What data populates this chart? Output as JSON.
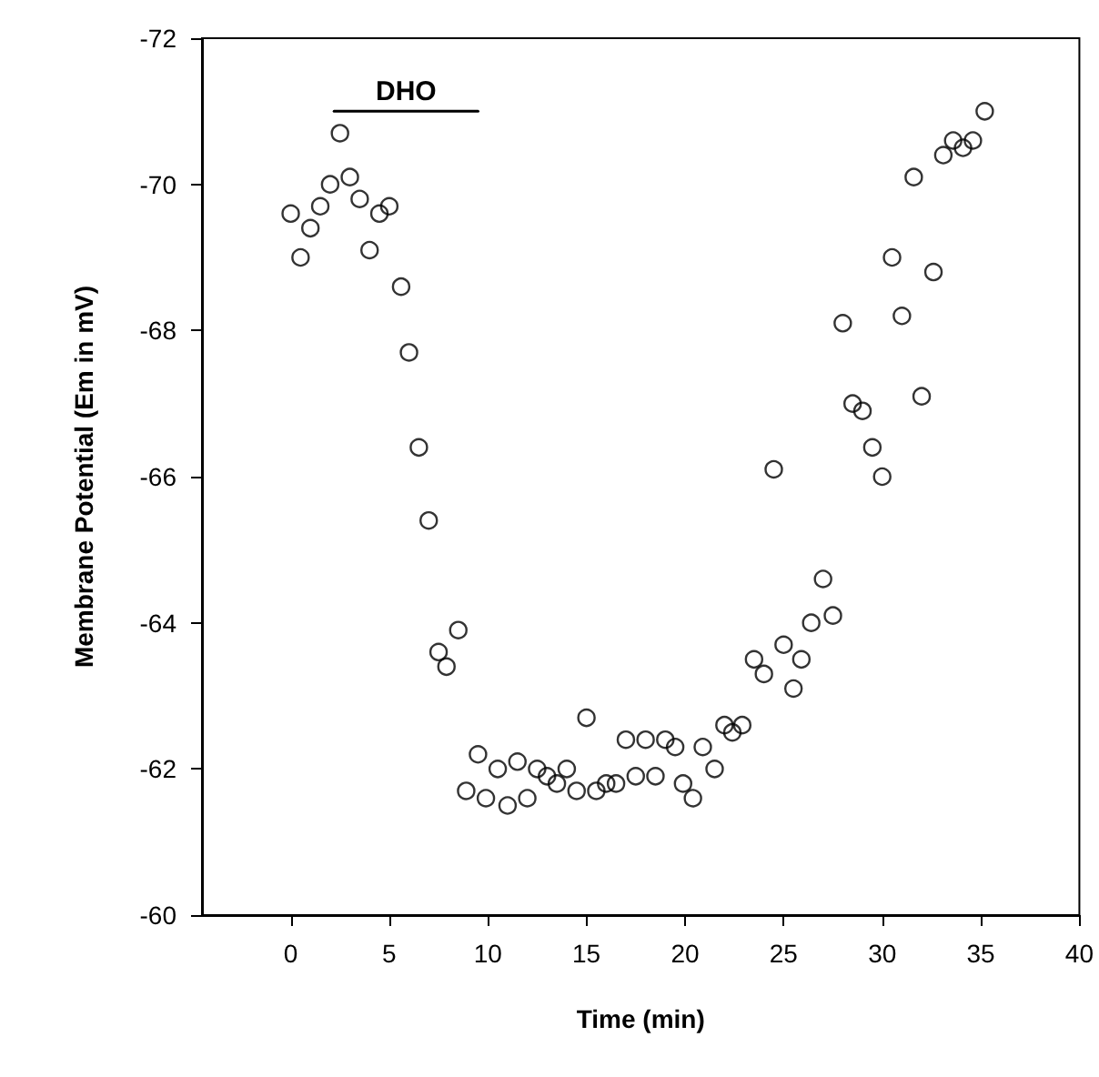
{
  "chart_data": {
    "type": "scatter",
    "xlabel": "Time (min)",
    "ylabel": "Membrane Potential (Em in mV)",
    "xlim": [
      -4.5,
      40
    ],
    "xticks": [
      0,
      5,
      10,
      15,
      20,
      25,
      30,
      35,
      40
    ],
    "ylim": [
      -60,
      -72
    ],
    "yticks": [
      -60,
      -62,
      -64,
      -66,
      -68,
      -70,
      -72
    ],
    "grid": false,
    "legend": false,
    "marker": "circle",
    "series": [
      {
        "color": "#000000",
        "x": [
          0.0,
          0.5,
          1.0,
          1.5,
          2.0,
          2.5,
          3.0,
          3.5,
          4.0,
          4.5,
          5.0,
          5.6,
          6.0,
          6.5,
          7.0,
          7.5,
          7.9,
          8.5,
          8.9,
          9.5,
          9.9,
          10.5,
          11.0,
          11.5,
          12.0,
          12.5,
          13.0,
          13.5,
          14.0,
          14.5,
          15.0,
          15.5,
          16.0,
          16.5,
          17.0,
          17.5,
          18.0,
          18.5,
          19.0,
          19.5,
          19.9,
          20.4,
          20.9,
          21.5,
          22.0,
          22.4,
          22.9,
          23.5,
          24.0,
          24.5,
          25.0,
          25.5,
          25.9,
          26.4,
          27.0,
          27.5,
          28.0,
          28.5,
          29.0,
          29.5,
          30.0,
          30.5,
          31.0,
          31.6,
          32.0,
          32.6,
          33.1,
          33.6,
          34.1,
          34.6,
          35.2
        ],
        "values": [
          -69.6,
          -69.0,
          -69.4,
          -69.7,
          -70.0,
          -70.7,
          -70.1,
          -69.8,
          -69.1,
          -69.6,
          -69.7,
          -68.6,
          -67.7,
          -66.4,
          -65.4,
          -63.6,
          -63.4,
          -63.9,
          -61.7,
          -62.2,
          -61.6,
          -62.0,
          -61.5,
          -62.1,
          -61.6,
          -62.0,
          -61.9,
          -61.8,
          -62.0,
          -61.7,
          -62.7,
          -61.7,
          -61.8,
          -61.8,
          -62.4,
          -61.9,
          -62.4,
          -61.9,
          -62.4,
          -62.3,
          -61.8,
          -61.6,
          -62.3,
          -62.0,
          -62.6,
          -62.5,
          -62.6,
          -63.5,
          -63.3,
          -66.1,
          -63.7,
          -63.1,
          -63.5,
          -64.0,
          -64.6,
          -64.1,
          -68.1,
          -67.0,
          -66.9,
          -66.4,
          -66.0,
          -69.0,
          -68.2,
          -70.1,
          -67.1,
          -68.8,
          -70.4,
          -70.6,
          -70.5,
          -70.6,
          -71.0
        ]
      },
      {
        "type": "line",
        "name": "DHO",
        "color": "#000000",
        "x": [
          2.2,
          9.5
        ],
        "values": [
          -71.0,
          -71.0
        ],
        "marker": "none",
        "line_style": "solid"
      }
    ]
  }
}
